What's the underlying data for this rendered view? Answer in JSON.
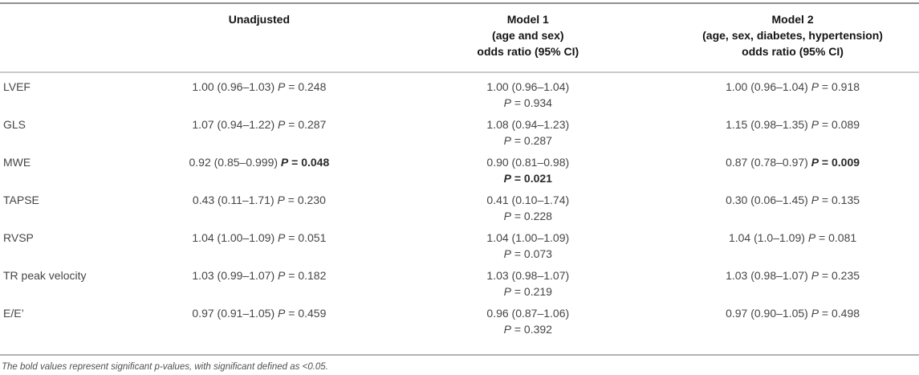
{
  "table": {
    "header": {
      "label_col": "",
      "unadjusted": "Unadjusted",
      "model1_lines": [
        "Model 1",
        "(age and sex)",
        "odds ratio (95% CI)"
      ],
      "model2_lines": [
        "Model 2",
        "(age, sex, diabetes, hypertension)",
        "odds ratio (95% CI)"
      ]
    },
    "p_symbol": "P",
    "rows": [
      {
        "label": "LVEF",
        "unadjusted": {
          "or": "1.00 (0.96–1.03)",
          "p": "0.248",
          "significant": false
        },
        "model1": {
          "or": "1.00 (0.96–1.04)",
          "p": "0.934",
          "significant": false
        },
        "model2": {
          "or": "1.00 (0.96–1.04)",
          "p": "0.918",
          "significant": false
        }
      },
      {
        "label": "GLS",
        "unadjusted": {
          "or": "1.07 (0.94–1.22)",
          "p": "0.287",
          "significant": false
        },
        "model1": {
          "or": "1.08 (0.94–1.23)",
          "p": "0.287",
          "significant": false
        },
        "model2": {
          "or": "1.15 (0.98–1.35)",
          "p": "0.089",
          "significant": false
        }
      },
      {
        "label": "MWE",
        "unadjusted": {
          "or": "0.92 (0.85–0.999)",
          "p": "0.048",
          "significant": true
        },
        "model1": {
          "or": "0.90 (0.81–0.98)",
          "p": "0.021",
          "significant": true
        },
        "model2": {
          "or": "0.87 (0.78–0.97)",
          "p": "0.009",
          "significant": true
        }
      },
      {
        "label": "TAPSE",
        "unadjusted": {
          "or": "0.43 (0.11–1.71)",
          "p": "0.230",
          "significant": false
        },
        "model1": {
          "or": "0.41 (0.10–1.74)",
          "p": "0.228",
          "significant": false
        },
        "model2": {
          "or": "0.30 (0.06–1.45)",
          "p": "0.135",
          "significant": false
        }
      },
      {
        "label": "RVSP",
        "unadjusted": {
          "or": "1.04 (1.00–1.09)",
          "p": "0.051",
          "significant": false
        },
        "model1": {
          "or": "1.04 (1.00–1.09)",
          "p": "0.073",
          "significant": false
        },
        "model2": {
          "or": "1.04 (1.0–1.09)",
          "p": "0.081",
          "significant": false
        }
      },
      {
        "label": "TR peak velocity",
        "unadjusted": {
          "or": "1.03 (0.99–1.07)",
          "p": "0.182",
          "significant": false
        },
        "model1": {
          "or": "1.03 (0.98–1.07)",
          "p": "0.219",
          "significant": false
        },
        "model2": {
          "or": "1.03 (0.98–1.07)",
          "p": "0.235",
          "significant": false
        }
      },
      {
        "label": "E/E’",
        "unadjusted": {
          "or": "0.97 (0.91–1.05)",
          "p": "0.459",
          "significant": false
        },
        "model1": {
          "or": "0.96 (0.87–1.06)",
          "p": "0.392",
          "significant": false
        },
        "model2": {
          "or": "0.97 (0.90–1.05)",
          "p": "0.498",
          "significant": false
        }
      }
    ],
    "footnote": "The bold values represent significant p-values, with significant defined as <0.05."
  }
}
